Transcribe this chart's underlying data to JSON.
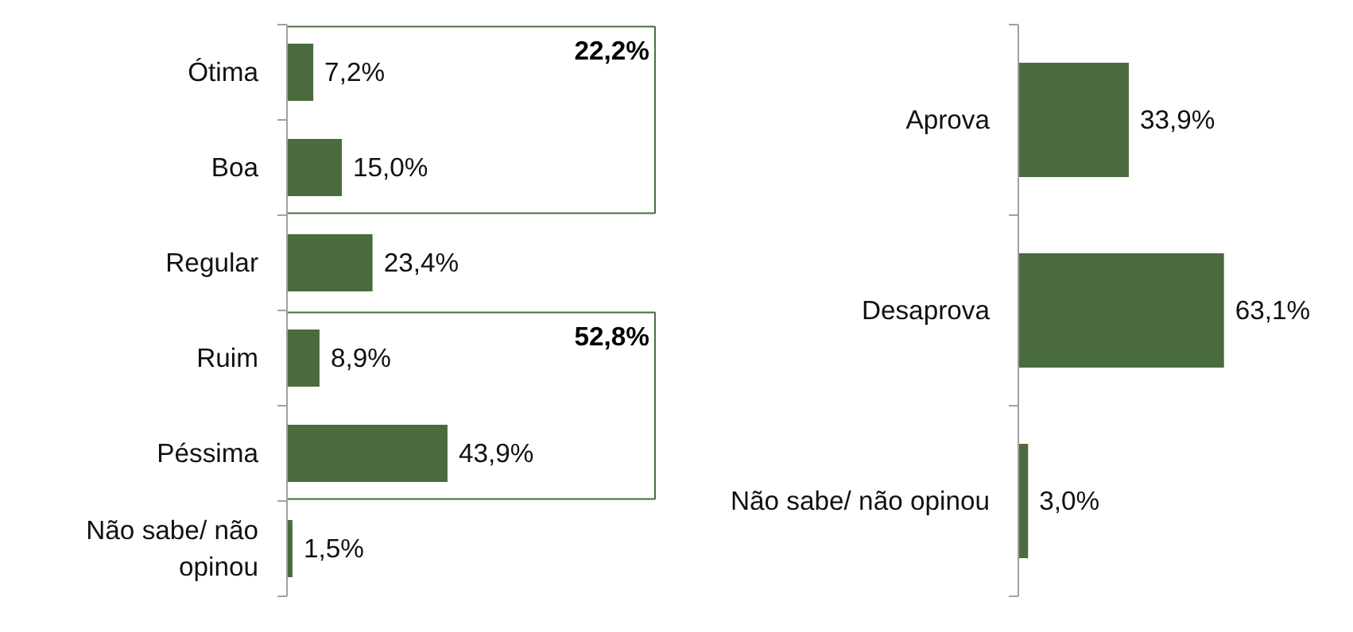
{
  "chart_data": [
    {
      "type": "bar",
      "orientation": "horizontal",
      "categories": [
        "Ótima",
        "Boa",
        "Regular",
        "Ruim",
        "Péssima",
        "Não sabe/ não opinou"
      ],
      "values": [
        7.2,
        15.0,
        23.4,
        8.9,
        43.9,
        1.5
      ],
      "color": "#4a6b3e",
      "value_labels": [
        "7,2%",
        "15,0%",
        "23,4%",
        "8,9%",
        "43,9%",
        "1,5%"
      ],
      "annotations": [
        "22,2%",
        "52,8%"
      ],
      "grid": false
    },
    {
      "type": "bar",
      "orientation": "horizontal",
      "categories": [
        "Aprova",
        "Desaprova",
        "Não sabe/ não opinou"
      ],
      "values": [
        33.9,
        63.1,
        3.0
      ],
      "color": "#4a6b3e",
      "value_labels": [
        "33,9%",
        "63,1%",
        "3,0%"
      ],
      "grid": false
    }
  ]
}
